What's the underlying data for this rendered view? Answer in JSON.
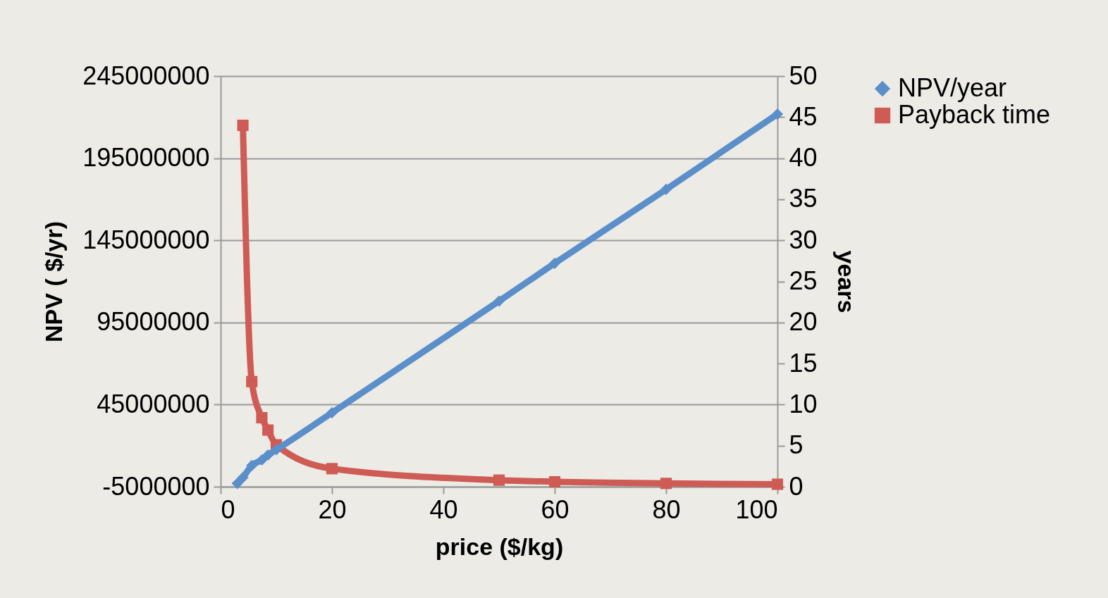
{
  "chart_data": {
    "type": "line",
    "xlabel": "price ($/kg)",
    "ylabel": "NPV ( $/yr)",
    "y2label": "years",
    "xlim": [
      0,
      100
    ],
    "xticks": [
      0,
      20,
      40,
      60,
      80,
      100
    ],
    "ylim": [
      -5000000,
      245000000
    ],
    "yticks": [
      -5000000,
      45000000,
      95000000,
      145000000,
      195000000,
      245000000
    ],
    "y2lim": [
      0,
      50
    ],
    "y2ticks": [
      0,
      5,
      10,
      15,
      20,
      25,
      30,
      35,
      40,
      45,
      50
    ],
    "grid": "y",
    "legend": "right",
    "line_style": "solid",
    "series": [
      {
        "name": "NPV/year",
        "color": "#5b8fc9",
        "marker": "diamond",
        "x": [
          3,
          4,
          5.6,
          7.4,
          8.5,
          10,
          20,
          50,
          60,
          80,
          100
        ],
        "values": [
          -3000000,
          600000,
          7900000,
          11300000,
          14300000,
          17500000,
          40000000,
          108000000,
          131000000,
          176000000,
          221800000
        ]
      },
      {
        "name": "Payback time",
        "color": "#cf5b55",
        "marker": "square",
        "axis": "y2",
        "x": [
          4,
          5.6,
          7.4,
          8.5,
          10,
          20,
          50,
          60,
          80,
          100
        ],
        "values": [
          44,
          12.8,
          8.4,
          6.9,
          5.1,
          2.2,
          0.8,
          0.6,
          0.4,
          0.3
        ]
      }
    ]
  }
}
